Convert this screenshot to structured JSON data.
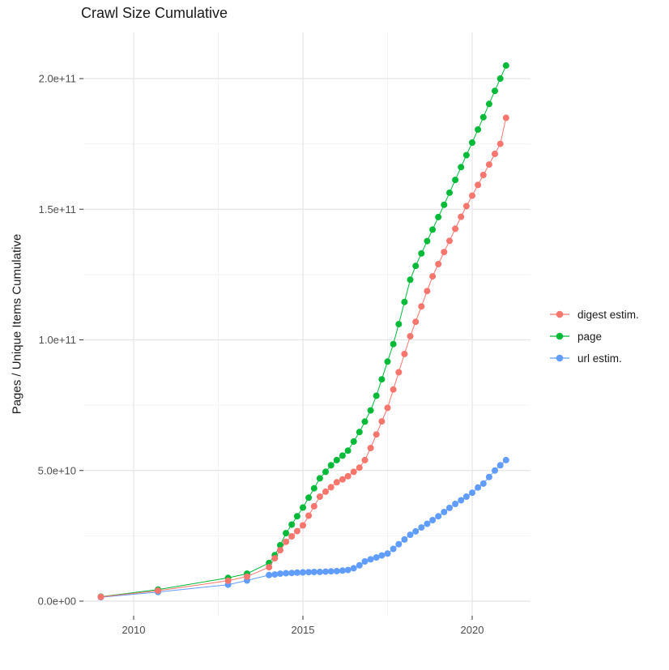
{
  "title": "Crawl Size Cumulative",
  "axes": {
    "y_label": "Pages / Unique Items Cumulative",
    "y_ticks": [
      {
        "v": 0,
        "label": "0.0e+00"
      },
      {
        "v": 50,
        "label": "5.0e+10"
      },
      {
        "v": 100,
        "label": "1.0e+11"
      },
      {
        "v": 150,
        "label": "1.5e+11"
      },
      {
        "v": 200,
        "label": "2.0e+11"
      }
    ],
    "y_minor": [
      25,
      75,
      125,
      175
    ],
    "x_ticks": [
      {
        "v": 2010,
        "label": "2010"
      },
      {
        "v": 2015,
        "label": "2015"
      },
      {
        "v": 2020,
        "label": "2020"
      }
    ],
    "x_minor": [
      2012.5,
      2017.5
    ]
  },
  "legend": {
    "items": [
      {
        "label": "digest estim.",
        "color": "#F8766D"
      },
      {
        "label": "page",
        "color": "#00BA38"
      },
      {
        "label": "url estim.",
        "color": "#619CFF"
      }
    ]
  },
  "colors": {
    "digest": "#F8766D",
    "page": "#00BA38",
    "url": "#619CFF",
    "grid_major": "#E4E4E4",
    "grid_minor": "#F2F2F2",
    "tick_text": "#4D4D4D",
    "tick_mark": "#333333",
    "background": "#FFFFFF"
  },
  "chart_data": {
    "type": "scatter",
    "title": "Crawl Size Cumulative",
    "xlabel": "",
    "ylabel": "Pages / Unique Items Cumulative",
    "xlim": [
      2008.5,
      2021.7
    ],
    "ylim": [
      0,
      210000000000.0
    ],
    "grid": true,
    "legend_position": "right",
    "y_unit_multiplier": 1000000000.0,
    "note": "y values below are in billions (multiply by 1e9); x values are decimal years",
    "series": [
      {
        "name": "digest estim.",
        "color": "#F8766D",
        "points": [
          [
            2009.03,
            1.6
          ],
          [
            2010.72,
            4.0
          ],
          [
            2012.79,
            7.8
          ],
          [
            2013.35,
            9.4
          ],
          [
            2014.0,
            13.0
          ],
          [
            2014.17,
            16.4
          ],
          [
            2014.33,
            19.5
          ],
          [
            2014.5,
            22.7
          ],
          [
            2014.67,
            24.8
          ],
          [
            2014.83,
            26.8
          ],
          [
            2015.0,
            29.0
          ],
          [
            2015.17,
            32.7
          ],
          [
            2015.33,
            36.3
          ],
          [
            2015.5,
            40.0
          ],
          [
            2015.67,
            41.9
          ],
          [
            2015.83,
            43.6
          ],
          [
            2016.0,
            45.5
          ],
          [
            2016.17,
            46.6
          ],
          [
            2016.33,
            47.8
          ],
          [
            2016.5,
            49.5
          ],
          [
            2016.67,
            51.1
          ],
          [
            2016.83,
            54.0
          ],
          [
            2017.0,
            58.6
          ],
          [
            2017.17,
            63.8
          ],
          [
            2017.33,
            68.8
          ],
          [
            2017.5,
            74.0
          ],
          [
            2017.67,
            81.0
          ],
          [
            2017.83,
            87.6
          ],
          [
            2018.0,
            94.6
          ],
          [
            2018.17,
            101.4
          ],
          [
            2018.33,
            106.9
          ],
          [
            2018.5,
            112.8
          ],
          [
            2018.67,
            118.7
          ],
          [
            2018.83,
            124.3
          ],
          [
            2019.0,
            129.0
          ],
          [
            2019.17,
            133.6
          ],
          [
            2019.33,
            137.9
          ],
          [
            2019.5,
            142.5
          ],
          [
            2019.67,
            147.1
          ],
          [
            2019.83,
            151.2
          ],
          [
            2020.0,
            155.2
          ],
          [
            2020.17,
            159.3
          ],
          [
            2020.33,
            163.1
          ],
          [
            2020.5,
            167.1
          ],
          [
            2020.67,
            171.2
          ],
          [
            2020.83,
            175.0
          ],
          [
            2021.0,
            185.0
          ]
        ]
      },
      {
        "name": "page",
        "color": "#00BA38",
        "points": [
          [
            2009.03,
            1.7
          ],
          [
            2010.72,
            4.4
          ],
          [
            2012.79,
            8.9
          ],
          [
            2013.35,
            10.5
          ],
          [
            2014.0,
            14.6
          ],
          [
            2014.17,
            17.6
          ],
          [
            2014.33,
            21.4
          ],
          [
            2014.5,
            26.0
          ],
          [
            2014.67,
            29.3
          ],
          [
            2014.83,
            32.5
          ],
          [
            2015.0,
            35.8
          ],
          [
            2015.17,
            39.6
          ],
          [
            2015.33,
            43.2
          ],
          [
            2015.5,
            47.0
          ],
          [
            2015.67,
            49.5
          ],
          [
            2015.83,
            52.0
          ],
          [
            2016.0,
            54.0
          ],
          [
            2016.17,
            55.7
          ],
          [
            2016.33,
            57.6
          ],
          [
            2016.5,
            61.1
          ],
          [
            2016.67,
            64.7
          ],
          [
            2016.83,
            68.7
          ],
          [
            2017.0,
            73.0
          ],
          [
            2017.17,
            78.6
          ],
          [
            2017.33,
            84.9
          ],
          [
            2017.5,
            91.7
          ],
          [
            2017.67,
            98.4
          ],
          [
            2017.83,
            106.0
          ],
          [
            2018.0,
            114.5
          ],
          [
            2018.17,
            123.0
          ],
          [
            2018.33,
            128.3
          ],
          [
            2018.5,
            133.1
          ],
          [
            2018.67,
            137.8
          ],
          [
            2018.83,
            142.2
          ],
          [
            2019.0,
            147.0
          ],
          [
            2019.17,
            151.7
          ],
          [
            2019.33,
            156.3
          ],
          [
            2019.5,
            161.2
          ],
          [
            2019.67,
            166.1
          ],
          [
            2019.83,
            170.7
          ],
          [
            2020.0,
            175.5
          ],
          [
            2020.17,
            180.5
          ],
          [
            2020.33,
            185.2
          ],
          [
            2020.5,
            190.3
          ],
          [
            2020.67,
            195.3
          ],
          [
            2020.83,
            200.0
          ],
          [
            2021.0,
            205.0
          ]
        ]
      },
      {
        "name": "url estim.",
        "color": "#619CFF",
        "points": [
          [
            2009.03,
            1.5
          ],
          [
            2010.72,
            3.5
          ],
          [
            2012.79,
            6.3
          ],
          [
            2013.35,
            7.9
          ],
          [
            2014.0,
            10.0
          ],
          [
            2014.17,
            10.2
          ],
          [
            2014.33,
            10.5
          ],
          [
            2014.5,
            10.7
          ],
          [
            2014.67,
            10.8
          ],
          [
            2014.83,
            10.9
          ],
          [
            2015.0,
            11.0
          ],
          [
            2015.17,
            11.1
          ],
          [
            2015.33,
            11.15
          ],
          [
            2015.5,
            11.2
          ],
          [
            2015.67,
            11.3
          ],
          [
            2015.83,
            11.4
          ],
          [
            2016.0,
            11.5
          ],
          [
            2016.17,
            11.7
          ],
          [
            2016.33,
            11.9
          ],
          [
            2016.5,
            12.6
          ],
          [
            2016.67,
            13.7
          ],
          [
            2016.83,
            15.2
          ],
          [
            2017.0,
            16.0
          ],
          [
            2017.17,
            16.7
          ],
          [
            2017.33,
            17.5
          ],
          [
            2017.5,
            18.2
          ],
          [
            2017.67,
            20.0
          ],
          [
            2017.83,
            21.8
          ],
          [
            2018.0,
            23.6
          ],
          [
            2018.17,
            25.4
          ],
          [
            2018.33,
            26.7
          ],
          [
            2018.5,
            28.2
          ],
          [
            2018.67,
            29.6
          ],
          [
            2018.83,
            31.0
          ],
          [
            2019.0,
            32.5
          ],
          [
            2019.17,
            34.1
          ],
          [
            2019.33,
            35.7
          ],
          [
            2019.5,
            37.2
          ],
          [
            2019.67,
            38.6
          ],
          [
            2019.83,
            40.0
          ],
          [
            2020.0,
            41.5
          ],
          [
            2020.17,
            43.5
          ],
          [
            2020.33,
            45.0
          ],
          [
            2020.5,
            47.5
          ],
          [
            2020.67,
            50.0
          ],
          [
            2020.83,
            52.0
          ],
          [
            2021.0,
            54.0
          ]
        ]
      }
    ]
  }
}
